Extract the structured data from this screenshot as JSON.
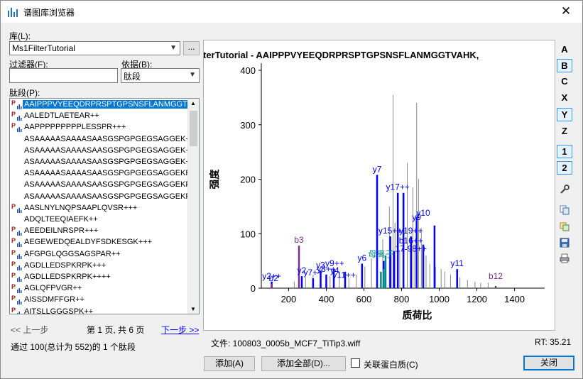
{
  "window": {
    "title": "谱图库浏览器"
  },
  "library": {
    "label": "库(L):",
    "value": "Ms1FilterTutorial",
    "ellipsis": "..."
  },
  "filter": {
    "label": "过滤器(F):",
    "value": ""
  },
  "basis": {
    "label": "依据(B):",
    "value": "肽段"
  },
  "peptides": {
    "label": "肽段(P):",
    "items": [
      {
        "text": "AAIPPPVYEEQDRPRSPTGPSNSFLANMGGTV",
        "icon": true
      },
      {
        "text": "AALEDTLAETEAR++",
        "icon": true
      },
      {
        "text": "AAPPPPPPPPPLESSPR+++",
        "icon": true
      },
      {
        "text": "ASAAAAASAAAASAASGSPGPGEGSAGGEK++",
        "icon": false
      },
      {
        "text": "ASAAAAASAAAASAASGSPGPGEGSAGGEK++",
        "icon": false
      },
      {
        "text": "ASAAAAASAAAASAASGSPGPGEGSAGGEK++",
        "icon": false
      },
      {
        "text": "ASAAAAASAAAASAASGSPGPGEGSAGGEKR+",
        "icon": false
      },
      {
        "text": "ASAAAAASAAAASAASGSPGPGEGSAGGEKR+",
        "icon": false
      },
      {
        "text": "ASAAAAASAAAASAASGSPGPGEGSAGGEKR+",
        "icon": false
      },
      {
        "text": "AASLNYLNQPSAAPLQVSR+++",
        "icon": true
      },
      {
        "text": "ADQLTEEQIAEFK++",
        "icon": false
      },
      {
        "text": "AEEDEILNRSPR+++",
        "icon": true
      },
      {
        "text": "AEGEWEDQEALDYFSDKESGK+++",
        "icon": true
      },
      {
        "text": "AFGPGLQGGSAGSPAR++",
        "icon": true
      },
      {
        "text": "AGDLLEDSPKRPK+++",
        "icon": true
      },
      {
        "text": "AGDLLEDSPKRPK++++",
        "icon": true
      },
      {
        "text": "AGLQFPVGR++",
        "icon": true
      },
      {
        "text": "AISSDMFFGR++",
        "icon": true
      },
      {
        "text": "AITSLLGGGSPK++",
        "icon": true
      }
    ]
  },
  "paging": {
    "prev": "<< 上一步",
    "page_info": "第 1 页, 共 6 页",
    "next": "下一步 >>"
  },
  "status": "通过 100(总计为 552)的 1 个肽段",
  "file": {
    "label": "文件: 100803_0005b_MCF7_TiTip3.wiff",
    "rt": "RT: 35.21"
  },
  "buttons": {
    "add": "添加(A)",
    "add_all": "添加全部(D)...",
    "assoc": "关联蛋白质(C)",
    "close": "关闭"
  },
  "toolbar": {
    "a": "A",
    "b": "B",
    "c": "C",
    "x": "X",
    "y": "Y",
    "z": "Z",
    "one": "1",
    "two": "2"
  },
  "colors": {
    "y_ion": "#0000ff",
    "b_ion": "#7a2c8f",
    "precursor": "#008b8b",
    "unmatched": "#888888"
  },
  "chart_data": {
    "type": "bar",
    "title": "terTutorial  -  AAIPPPVYEEQDRPRSPTGPSNSFLANMGGTVAHK,",
    "xlabel": "质荷比",
    "ylabel": "强度",
    "xlim": [
      55,
      1560
    ],
    "ylim": [
      0,
      400
    ],
    "xticks": [
      200,
      400,
      600,
      800,
      1000,
      1200,
      1400
    ],
    "yticks": [
      0,
      100,
      200,
      300,
      400
    ],
    "series": [
      {
        "name": "unmatched",
        "x": [
          230,
          290,
          330,
          420,
          470,
          520,
          560,
          605,
          640,
          700,
          735,
          745,
          755,
          765,
          790,
          808,
          830,
          850,
          860,
          870,
          880,
          890,
          905,
          930,
          950,
          980,
          1010,
          1030,
          1060,
          1110,
          1150,
          1190,
          1220,
          1260
        ],
        "y": [
          12,
          20,
          25,
          22,
          28,
          18,
          25,
          40,
          55,
          90,
          150,
          60,
          355,
          120,
          70,
          140,
          230,
          90,
          185,
          80,
          340,
          200,
          110,
          60,
          45,
          40,
          35,
          30,
          25,
          20,
          15,
          12,
          10,
          10
        ]
      },
      {
        "name": "y",
        "x": [
          110,
          270,
          330,
          370,
          400,
          440,
          500,
          590,
          670,
          705,
          740,
          760,
          780,
          810,
          850,
          880,
          915,
          975,
          1095
        ],
        "y": [
          12,
          22,
          18,
          32,
          25,
          35,
          30,
          45,
          208,
          50,
          95,
          68,
          175,
          175,
          95,
          130,
          80,
          115,
          35
        ]
      },
      {
        "name": "b",
        "x": [
          110,
          255,
          1300
        ],
        "y": [
          8,
          78,
          4
        ]
      },
      {
        "name": "precursor",
        "x": [
          690,
          705,
          715
        ],
        "y": [
          30,
          35,
          60
        ]
      }
    ],
    "annotations": [
      {
        "text": "y2++",
        "x": 110,
        "y": 12,
        "ion": "y"
      },
      {
        "text": "b2",
        "x": 120,
        "y": 8,
        "ion": "y"
      },
      {
        "text": "b3",
        "x": 255,
        "y": 78,
        "ion": "b"
      },
      {
        "text": "y2",
        "x": 270,
        "y": 22,
        "ion": "y"
      },
      {
        "text": "y7++",
        "x": 330,
        "y": 18,
        "ion": "y"
      },
      {
        "text": "y3",
        "x": 370,
        "y": 32,
        "ion": "y"
      },
      {
        "text": "y8++",
        "x": 400,
        "y": 25,
        "ion": "y"
      },
      {
        "text": "y9++",
        "x": 445,
        "y": 35,
        "ion": "y"
      },
      {
        "text": "y4",
        "x": 445,
        "y": 22,
        "ion": "y"
      },
      {
        "text": "y11++",
        "x": 495,
        "y": 14,
        "ion": "y"
      },
      {
        "text": "y6",
        "x": 590,
        "y": 45,
        "ion": "y"
      },
      {
        "text": "母离子",
        "x": 690,
        "y": 52,
        "ion": "precursor"
      },
      {
        "text": "y7",
        "x": 670,
        "y": 208,
        "ion": "y"
      },
      {
        "text": "y15++",
        "x": 740,
        "y": 95,
        "ion": "y"
      },
      {
        "text": "y17++",
        "x": 780,
        "y": 175,
        "ion": "y"
      },
      {
        "text": "y19++",
        "x": 850,
        "y": 95,
        "ion": "y"
      },
      {
        "text": "b16++",
        "x": 850,
        "y": 77,
        "ion": "y"
      },
      {
        "text": "y9",
        "x": 880,
        "y": 120,
        "ion": "y"
      },
      {
        "text": "y10",
        "x": 915,
        "y": 128,
        "ion": "y"
      },
      {
        "text": "17-98++",
        "x": 850,
        "y": 62,
        "ion": "y"
      },
      {
        "text": "y11",
        "x": 1095,
        "y": 35,
        "ion": "y"
      },
      {
        "text": "b12",
        "x": 1300,
        "y": 12,
        "ion": "b"
      }
    ]
  }
}
